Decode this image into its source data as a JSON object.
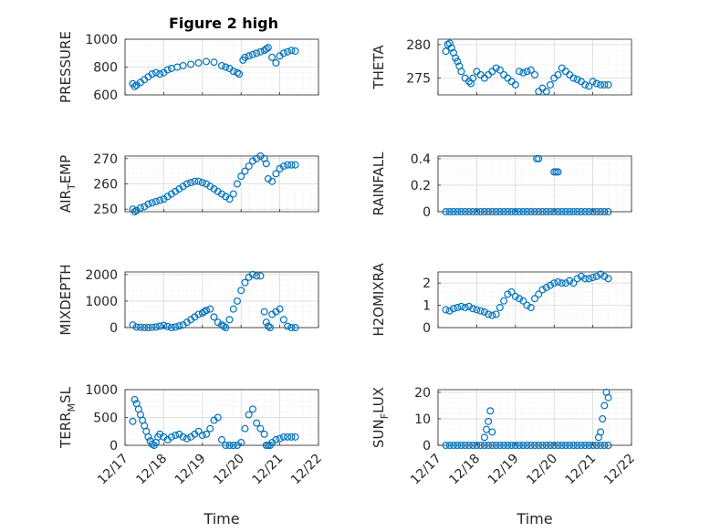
{
  "figure": {
    "title": "Figure 2 high"
  },
  "chart_data": [
    {
      "type": "scatter",
      "ylabel": "PRESSURE",
      "ylim": [
        600,
        1000
      ],
      "yticks": [
        600,
        800,
        1000
      ],
      "xlim": [
        0,
        5
      ],
      "xticks": [
        0,
        1,
        2,
        3,
        4,
        5
      ],
      "xticklabels": [],
      "xlabel": "",
      "grid": true,
      "marker_color": "#0072BD",
      "series": [
        {
          "x": [
            0.2,
            0.25,
            0.3,
            0.4,
            0.5,
            0.6,
            0.7,
            0.8,
            0.9,
            1.0,
            1.1,
            1.2,
            1.35,
            1.5,
            1.7,
            1.9,
            2.1,
            2.3,
            2.5,
            2.6,
            2.7,
            2.8,
            2.9,
            2.95,
            3.05,
            3.1,
            3.2,
            3.3,
            3.4,
            3.5,
            3.6,
            3.65,
            3.7,
            3.8,
            3.9,
            4.0,
            4.1,
            4.2,
            4.3,
            4.4
          ],
          "y": [
            680,
            660,
            670,
            690,
            710,
            730,
            750,
            760,
            750,
            760,
            780,
            790,
            800,
            810,
            820,
            830,
            840,
            835,
            810,
            800,
            790,
            770,
            760,
            750,
            850,
            870,
            880,
            890,
            900,
            910,
            920,
            930,
            940,
            870,
            830,
            880,
            900,
            910,
            920,
            915
          ]
        }
      ]
    },
    {
      "type": "scatter",
      "ylabel": "THETA",
      "ylim": [
        272.5,
        280.8
      ],
      "yticks": [
        275,
        280
      ],
      "yticklabels": [
        "275",
        "280"
      ],
      "xlim": [
        0,
        5
      ],
      "xticks": [
        0,
        1,
        2,
        3,
        4,
        5
      ],
      "xticklabels": [],
      "xlabel": "",
      "grid": true,
      "marker_color": "#0072BD",
      "series": [
        {
          "x": [
            0.2,
            0.25,
            0.3,
            0.35,
            0.4,
            0.45,
            0.5,
            0.55,
            0.6,
            0.7,
            0.8,
            0.85,
            0.9,
            1.0,
            1.1,
            1.2,
            1.3,
            1.4,
            1.5,
            1.6,
            1.7,
            1.8,
            1.9,
            2.0,
            2.1,
            2.2,
            2.3,
            2.4,
            2.5,
            2.6,
            2.7,
            2.8,
            2.9,
            3.0,
            3.1,
            3.2,
            3.3,
            3.4,
            3.5,
            3.6,
            3.7,
            3.8,
            3.9,
            4.0,
            4.1,
            4.2,
            4.3,
            4.4
          ],
          "y": [
            279,
            280,
            280.2,
            279.5,
            278.8,
            278,
            277.5,
            276.8,
            276,
            275,
            274.5,
            274.2,
            275,
            276,
            275.5,
            275,
            275.5,
            276,
            276.5,
            276.2,
            275.5,
            275,
            274.5,
            274,
            276,
            275.8,
            276,
            276.2,
            275.5,
            273,
            273.5,
            273,
            274,
            275,
            275.5,
            276.5,
            276,
            275.5,
            275,
            274.8,
            274.5,
            274,
            273.8,
            274.5,
            274.2,
            274,
            274,
            274
          ]
        }
      ]
    },
    {
      "type": "scatter",
      "ylabel": "AIR_TEMP",
      "ylim": [
        249,
        271
      ],
      "yticks": [
        250,
        260,
        270
      ],
      "xlim": [
        0,
        5
      ],
      "xticks": [
        0,
        1,
        2,
        3,
        4,
        5
      ],
      "xticklabels": [],
      "xlabel": "",
      "grid": true,
      "marker_color": "#0072BD",
      "series": [
        {
          "x": [
            0.2,
            0.25,
            0.3,
            0.4,
            0.5,
            0.6,
            0.7,
            0.8,
            0.9,
            1.0,
            1.1,
            1.2,
            1.3,
            1.4,
            1.5,
            1.6,
            1.7,
            1.8,
            1.9,
            2.0,
            2.1,
            2.2,
            2.3,
            2.4,
            2.5,
            2.6,
            2.7,
            2.8,
            2.9,
            3.0,
            3.1,
            3.2,
            3.3,
            3.4,
            3.5,
            3.6,
            3.65,
            3.7,
            3.8,
            3.9,
            4.0,
            4.1,
            4.2,
            4.3,
            4.4
          ],
          "y": [
            250,
            249,
            249.5,
            250.5,
            251,
            252,
            252.5,
            253,
            253.5,
            254,
            255,
            256,
            257,
            258,
            259,
            260,
            260.5,
            261,
            261,
            260.5,
            260,
            259,
            258,
            257,
            256,
            255,
            254,
            256,
            260,
            263,
            265,
            267,
            269,
            270,
            271,
            270,
            268,
            262,
            261,
            264,
            266,
            267,
            267.5,
            267.5,
            267.5
          ]
        }
      ]
    },
    {
      "type": "scatter",
      "ylabel": "RAINFALL",
      "ylim": [
        0,
        0.42
      ],
      "yticks": [
        0,
        0.2,
        0.4
      ],
      "yticklabels": [
        "0",
        "0.2",
        "0.4"
      ],
      "xlim": [
        0,
        5
      ],
      "xticks": [
        0,
        1,
        2,
        3,
        4,
        5
      ],
      "xticklabels": [],
      "xlabel": "",
      "grid": true,
      "marker_color": "#0072BD",
      "series": [
        {
          "x": [
            0.2,
            0.3,
            0.4,
            0.5,
            0.6,
            0.7,
            0.8,
            0.9,
            1.0,
            1.1,
            1.2,
            1.3,
            1.4,
            1.5,
            1.6,
            1.7,
            1.8,
            1.9,
            2.0,
            2.1,
            2.2,
            2.3,
            2.4,
            2.5,
            2.6,
            2.7,
            2.8,
            2.9,
            3.0,
            3.1,
            3.2,
            3.3,
            3.4,
            3.5,
            3.6,
            3.7,
            3.8,
            3.9,
            4.0,
            4.1,
            4.2,
            4.3,
            4.4,
            2.55,
            2.6,
            3.0,
            3.05,
            3.1
          ],
          "y": [
            0,
            0,
            0,
            0,
            0,
            0,
            0,
            0,
            0,
            0,
            0,
            0,
            0,
            0,
            0,
            0,
            0,
            0,
            0,
            0,
            0,
            0,
            0,
            0,
            0,
            0,
            0,
            0,
            0,
            0,
            0,
            0,
            0,
            0,
            0,
            0,
            0,
            0,
            0,
            0,
            0,
            0,
            0,
            0.4,
            0.4,
            0.3,
            0.3,
            0.3
          ]
        }
      ]
    },
    {
      "type": "scatter",
      "ylabel": "MIXDEPTH",
      "ylim": [
        0,
        2100
      ],
      "yticks": [
        0,
        1000,
        2000
      ],
      "xlim": [
        0,
        5
      ],
      "xticks": [
        0,
        1,
        2,
        3,
        4,
        5
      ],
      "xticklabels": [],
      "xlabel": "",
      "grid": true,
      "marker_color": "#0072BD",
      "series": [
        {
          "x": [
            0.2,
            0.3,
            0.4,
            0.5,
            0.6,
            0.7,
            0.8,
            0.9,
            1.0,
            1.1,
            1.2,
            1.3,
            1.4,
            1.5,
            1.6,
            1.7,
            1.8,
            1.9,
            2.0,
            2.05,
            2.1,
            2.2,
            2.3,
            2.4,
            2.5,
            2.55,
            2.6,
            2.7,
            2.8,
            2.9,
            3.0,
            3.1,
            3.2,
            3.3,
            3.4,
            3.5,
            3.6,
            3.65,
            3.7,
            3.75,
            3.8,
            3.9,
            4.0,
            4.1,
            4.2,
            4.3,
            4.4
          ],
          "y": [
            100,
            20,
            10,
            0,
            0,
            10,
            20,
            50,
            80,
            40,
            0,
            20,
            60,
            100,
            200,
            300,
            400,
            500,
            550,
            600,
            650,
            700,
            400,
            200,
            100,
            50,
            0,
            300,
            700,
            1000,
            1400,
            1700,
            1900,
            2000,
            1950,
            1950,
            600,
            200,
            50,
            0,
            500,
            600,
            700,
            300,
            50,
            0,
            0
          ]
        }
      ]
    },
    {
      "type": "scatter",
      "ylabel": "H2OMIXRA",
      "ylim": [
        0,
        2.5
      ],
      "yticks": [
        0,
        1,
        2
      ],
      "xlim": [
        0,
        5
      ],
      "xticks": [
        0,
        1,
        2,
        3,
        4,
        5
      ],
      "xticklabels": [],
      "xlabel": "",
      "grid": true,
      "marker_color": "#0072BD",
      "series": [
        {
          "x": [
            0.2,
            0.3,
            0.4,
            0.5,
            0.6,
            0.7,
            0.8,
            0.9,
            1.0,
            1.1,
            1.2,
            1.3,
            1.4,
            1.5,
            1.6,
            1.7,
            1.8,
            1.9,
            2.0,
            2.1,
            2.2,
            2.3,
            2.4,
            2.5,
            2.6,
            2.7,
            2.8,
            2.9,
            3.0,
            3.1,
            3.2,
            3.3,
            3.4,
            3.5,
            3.6,
            3.7,
            3.8,
            3.9,
            4.0,
            4.1,
            4.2,
            4.3,
            4.4
          ],
          "y": [
            0.8,
            0.75,
            0.85,
            0.9,
            0.95,
            0.9,
            0.95,
            0.85,
            0.8,
            0.75,
            0.7,
            0.6,
            0.55,
            0.6,
            0.9,
            1.2,
            1.5,
            1.6,
            1.4,
            1.3,
            1.2,
            1.0,
            0.9,
            1.3,
            1.5,
            1.7,
            1.8,
            1.9,
            2.0,
            2.05,
            2.0,
            2.0,
            2.1,
            2.0,
            2.2,
            2.3,
            2.2,
            2.2,
            2.25,
            2.3,
            2.4,
            2.3,
            2.2
          ]
        }
      ]
    },
    {
      "type": "scatter",
      "ylabel": "TERR_MSL",
      "ylim": [
        0,
        1000
      ],
      "yticks": [
        0,
        500,
        1000
      ],
      "xlim": [
        0,
        5
      ],
      "xticks": [
        0,
        1,
        2,
        3,
        4,
        5
      ],
      "xticklabels": [
        "12/17",
        "12/18",
        "12/19",
        "12/20",
        "12/21",
        "12/22"
      ],
      "xlabel": "Time",
      "grid": true,
      "marker_color": "#0072BD",
      "series": [
        {
          "x": [
            0.2,
            0.25,
            0.3,
            0.35,
            0.4,
            0.45,
            0.5,
            0.55,
            0.6,
            0.65,
            0.7,
            0.75,
            0.8,
            0.85,
            0.9,
            1.0,
            1.1,
            1.2,
            1.3,
            1.4,
            1.5,
            1.6,
            1.7,
            1.8,
            1.9,
            2.0,
            2.1,
            2.2,
            2.3,
            2.4,
            2.5,
            2.6,
            2.7,
            2.8,
            2.9,
            3.0,
            3.1,
            3.2,
            3.3,
            3.4,
            3.5,
            3.6,
            3.65,
            3.7,
            3.75,
            3.8,
            3.9,
            4.0,
            4.1,
            4.2,
            4.3,
            4.4
          ],
          "y": [
            430,
            820,
            750,
            650,
            550,
            450,
            350,
            250,
            150,
            80,
            20,
            0,
            50,
            150,
            200,
            150,
            100,
            150,
            180,
            200,
            150,
            120,
            150,
            200,
            250,
            180,
            200,
            300,
            450,
            500,
            100,
            0,
            0,
            0,
            0,
            50,
            300,
            550,
            650,
            400,
            300,
            200,
            0,
            0,
            0,
            50,
            100,
            120,
            150,
            150,
            150,
            150
          ]
        }
      ]
    },
    {
      "type": "scatter",
      "ylabel": "SUN_FLUX",
      "ylim": [
        0,
        21
      ],
      "yticks": [
        0,
        10,
        20
      ],
      "xlim": [
        0,
        5
      ],
      "xticks": [
        0,
        1,
        2,
        3,
        4,
        5
      ],
      "xticklabels": [
        "12/17",
        "12/18",
        "12/19",
        "12/20",
        "12/21",
        "12/22"
      ],
      "xlabel": "Time",
      "grid": true,
      "marker_color": "#0072BD",
      "series": [
        {
          "x": [
            0.2,
            0.3,
            0.4,
            0.5,
            0.6,
            0.7,
            0.8,
            0.9,
            1.0,
            1.1,
            1.2,
            1.3,
            1.4,
            1.5,
            1.6,
            1.7,
            1.8,
            1.9,
            2.0,
            2.1,
            2.2,
            2.3,
            2.4,
            2.5,
            2.6,
            2.7,
            2.8,
            2.9,
            3.0,
            3.1,
            3.2,
            3.3,
            3.4,
            3.5,
            3.6,
            3.7,
            3.8,
            3.9,
            4.0,
            4.1,
            4.2,
            4.3,
            4.4,
            1.2,
            1.25,
            1.3,
            1.35,
            1.4,
            4.15,
            4.2,
            4.25,
            4.3,
            4.35,
            4.4
          ],
          "y": [
            0,
            0,
            0,
            0,
            0,
            0,
            0,
            0,
            0,
            0,
            0,
            0,
            0,
            0,
            0,
            0,
            0,
            0,
            0,
            0,
            0,
            0,
            0,
            0,
            0,
            0,
            0,
            0,
            0,
            0,
            0,
            0,
            0,
            0,
            0,
            0,
            0,
            0,
            0,
            0,
            0,
            0,
            0,
            3,
            6,
            9,
            13,
            5,
            3,
            5,
            10,
            15,
            20,
            18
          ]
        }
      ]
    }
  ]
}
